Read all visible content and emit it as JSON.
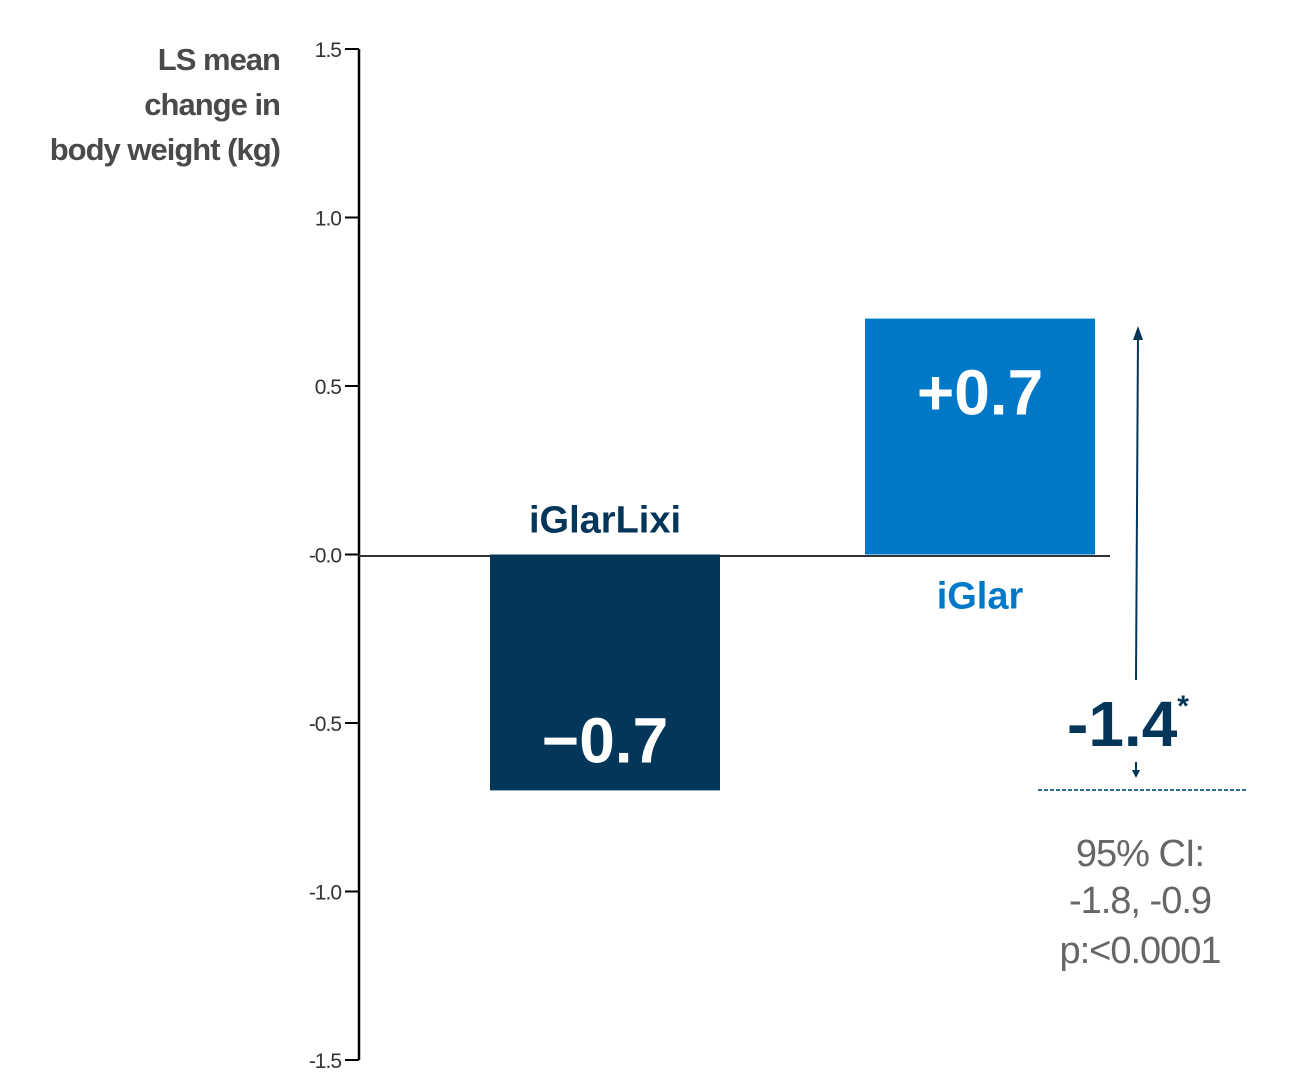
{
  "chart_data": {
    "type": "bar",
    "ylabel": [
      "LS mean",
      "change in",
      "body weight (kg)"
    ],
    "ylim": [
      -1.5,
      1.5
    ],
    "yticks": [
      1.5,
      1.0,
      0.5,
      0.0,
      -0.5,
      -1.0,
      -1.5
    ],
    "ytick_labels": [
      "1.5",
      "1.0",
      "0.5",
      "-0.0",
      "-0.5",
      "-1.0",
      "-1.5"
    ],
    "categories": [
      "iGlarLixi",
      "iGlar"
    ],
    "values": [
      -0.7,
      0.7
    ],
    "value_labels": [
      "−0.7",
      "+0.7"
    ],
    "colors": [
      "#04365a",
      "#0078c8"
    ],
    "difference": {
      "value": -1.4,
      "label": "-1.4",
      "marker": "*",
      "color": "#04365a",
      "ci_lines": [
        "95% CI:",
        "-1.8, -0.9",
        "p:<0.0001"
      ]
    },
    "grid": false,
    "legend": "none"
  }
}
